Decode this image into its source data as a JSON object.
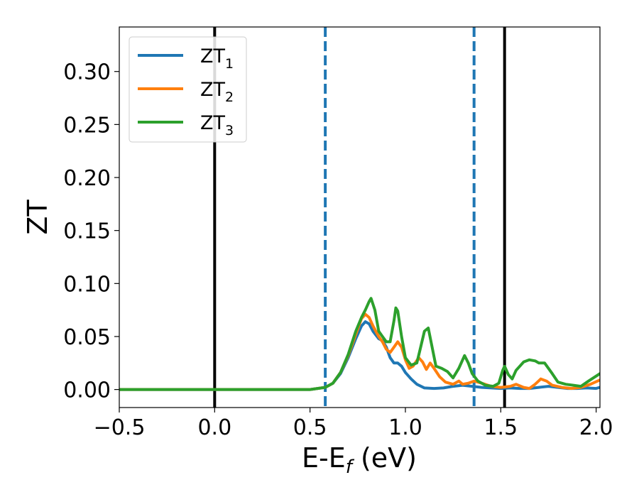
{
  "chart_data": {
    "type": "line",
    "xlabel": "E-E_f (eV)",
    "xlabel_main": "E-E",
    "xlabel_sub": "f",
    "xlabel_tail": " (eV)",
    "ylabel": "ZT",
    "xlim": [
      -0.5,
      2.02
    ],
    "ylim": [
      -0.017,
      0.342
    ],
    "xticks": [
      -0.5,
      0.0,
      0.5,
      1.0,
      1.5,
      2.0
    ],
    "xtick_labels": [
      "−0.5",
      "0.0",
      "0.5",
      "1.0",
      "1.5",
      "2.0"
    ],
    "yticks": [
      0.0,
      0.05,
      0.1,
      0.15,
      0.2,
      0.25,
      0.3
    ],
    "ytick_labels": [
      "0.00",
      "0.05",
      "0.10",
      "0.15",
      "0.20",
      "0.25",
      "0.30"
    ],
    "grid": false,
    "legend_position": "top-left",
    "vlines": [
      {
        "x": 0.0,
        "style": "solid",
        "color": "#000000"
      },
      {
        "x": 0.58,
        "style": "dashed",
        "color": "#1f77b4"
      },
      {
        "x": 1.36,
        "style": "dashed",
        "color": "#1f77b4"
      },
      {
        "x": 1.52,
        "style": "solid",
        "color": "#000000"
      }
    ],
    "series": [
      {
        "name": "ZT_1",
        "label_main": "ZT",
        "label_sub": "1",
        "color": "#1f77b4",
        "points": [
          [
            -0.5,
            0
          ],
          [
            0.5,
            0
          ],
          [
            0.58,
            0.002
          ],
          [
            0.62,
            0.006
          ],
          [
            0.66,
            0.015
          ],
          [
            0.7,
            0.03
          ],
          [
            0.74,
            0.048
          ],
          [
            0.77,
            0.06
          ],
          [
            0.79,
            0.064
          ],
          [
            0.81,
            0.062
          ],
          [
            0.83,
            0.055
          ],
          [
            0.86,
            0.048
          ],
          [
            0.88,
            0.046
          ],
          [
            0.9,
            0.04
          ],
          [
            0.92,
            0.03
          ],
          [
            0.94,
            0.025
          ],
          [
            0.96,
            0.025
          ],
          [
            0.98,
            0.022
          ],
          [
            1.0,
            0.016
          ],
          [
            1.03,
            0.01
          ],
          [
            1.06,
            0.005
          ],
          [
            1.1,
            0.0015
          ],
          [
            1.15,
            0.001
          ],
          [
            1.2,
            0.0015
          ],
          [
            1.25,
            0.003
          ],
          [
            1.3,
            0.004
          ],
          [
            1.35,
            0.003
          ],
          [
            1.4,
            0.002
          ],
          [
            1.45,
            0.0015
          ],
          [
            1.5,
            0.001
          ],
          [
            1.55,
            0.0015
          ],
          [
            1.6,
            0.001
          ],
          [
            1.65,
            0.001
          ],
          [
            1.7,
            0.002
          ],
          [
            1.75,
            0.003
          ],
          [
            1.8,
            0.002
          ],
          [
            1.85,
            0.001
          ],
          [
            1.9,
            0.001
          ],
          [
            1.95,
            0.0015
          ],
          [
            2.0,
            0.001
          ],
          [
            2.02,
            0.002
          ]
        ]
      },
      {
        "name": "ZT_2",
        "label_main": "ZT",
        "label_sub": "2",
        "color": "#ff7f0e",
        "points": [
          [
            -0.5,
            0
          ],
          [
            0.5,
            0
          ],
          [
            0.58,
            0.002
          ],
          [
            0.62,
            0.006
          ],
          [
            0.66,
            0.016
          ],
          [
            0.7,
            0.032
          ],
          [
            0.74,
            0.052
          ],
          [
            0.77,
            0.067
          ],
          [
            0.79,
            0.071
          ],
          [
            0.81,
            0.068
          ],
          [
            0.83,
            0.06
          ],
          [
            0.86,
            0.05
          ],
          [
            0.88,
            0.045
          ],
          [
            0.9,
            0.038
          ],
          [
            0.92,
            0.035
          ],
          [
            0.94,
            0.04
          ],
          [
            0.96,
            0.045
          ],
          [
            0.98,
            0.04
          ],
          [
            1.0,
            0.028
          ],
          [
            1.02,
            0.02
          ],
          [
            1.04,
            0.022
          ],
          [
            1.07,
            0.03
          ],
          [
            1.09,
            0.026
          ],
          [
            1.11,
            0.019
          ],
          [
            1.13,
            0.025
          ],
          [
            1.15,
            0.02
          ],
          [
            1.18,
            0.012
          ],
          [
            1.21,
            0.007
          ],
          [
            1.25,
            0.005
          ],
          [
            1.28,
            0.008
          ],
          [
            1.3,
            0.005
          ],
          [
            1.33,
            0.006
          ],
          [
            1.36,
            0.008
          ],
          [
            1.4,
            0.006
          ],
          [
            1.45,
            0.003
          ],
          [
            1.5,
            0.002
          ],
          [
            1.55,
            0.003
          ],
          [
            1.58,
            0.005
          ],
          [
            1.62,
            0.002
          ],
          [
            1.65,
            0.001
          ],
          [
            1.68,
            0.005
          ],
          [
            1.71,
            0.01
          ],
          [
            1.74,
            0.008
          ],
          [
            1.77,
            0.004
          ],
          [
            1.82,
            0.002
          ],
          [
            1.87,
            0.001
          ],
          [
            1.92,
            0.002
          ],
          [
            1.97,
            0.005
          ],
          [
            2.02,
            0.009
          ]
        ]
      },
      {
        "name": "ZT_3",
        "label_main": "ZT",
        "label_sub": "3",
        "color": "#2ca02c",
        "points": [
          [
            -0.5,
            0
          ],
          [
            0.5,
            0
          ],
          [
            0.58,
            0.002
          ],
          [
            0.62,
            0.006
          ],
          [
            0.66,
            0.016
          ],
          [
            0.7,
            0.033
          ],
          [
            0.74,
            0.055
          ],
          [
            0.77,
            0.068
          ],
          [
            0.79,
            0.075
          ],
          [
            0.81,
            0.083
          ],
          [
            0.82,
            0.086
          ],
          [
            0.84,
            0.075
          ],
          [
            0.86,
            0.055
          ],
          [
            0.88,
            0.05
          ],
          [
            0.9,
            0.045
          ],
          [
            0.92,
            0.045
          ],
          [
            0.94,
            0.065
          ],
          [
            0.95,
            0.077
          ],
          [
            0.96,
            0.074
          ],
          [
            0.98,
            0.05
          ],
          [
            1.0,
            0.03
          ],
          [
            1.03,
            0.023
          ],
          [
            1.06,
            0.025
          ],
          [
            1.08,
            0.04
          ],
          [
            1.1,
            0.055
          ],
          [
            1.12,
            0.058
          ],
          [
            1.14,
            0.04
          ],
          [
            1.16,
            0.022
          ],
          [
            1.19,
            0.02
          ],
          [
            1.22,
            0.017
          ],
          [
            1.25,
            0.011
          ],
          [
            1.28,
            0.02
          ],
          [
            1.31,
            0.032
          ],
          [
            1.33,
            0.025
          ],
          [
            1.35,
            0.015
          ],
          [
            1.38,
            0.008
          ],
          [
            1.42,
            0.004
          ],
          [
            1.46,
            0.003
          ],
          [
            1.49,
            0.006
          ],
          [
            1.51,
            0.018
          ],
          [
            1.52,
            0.022
          ],
          [
            1.54,
            0.014
          ],
          [
            1.56,
            0.01
          ],
          [
            1.58,
            0.018
          ],
          [
            1.62,
            0.026
          ],
          [
            1.65,
            0.028
          ],
          [
            1.68,
            0.027
          ],
          [
            1.7,
            0.025
          ],
          [
            1.73,
            0.025
          ],
          [
            1.77,
            0.015
          ],
          [
            1.8,
            0.007
          ],
          [
            1.84,
            0.005
          ],
          [
            1.88,
            0.004
          ],
          [
            1.92,
            0.003
          ],
          [
            1.96,
            0.008
          ],
          [
            2.02,
            0.015
          ]
        ]
      }
    ]
  }
}
